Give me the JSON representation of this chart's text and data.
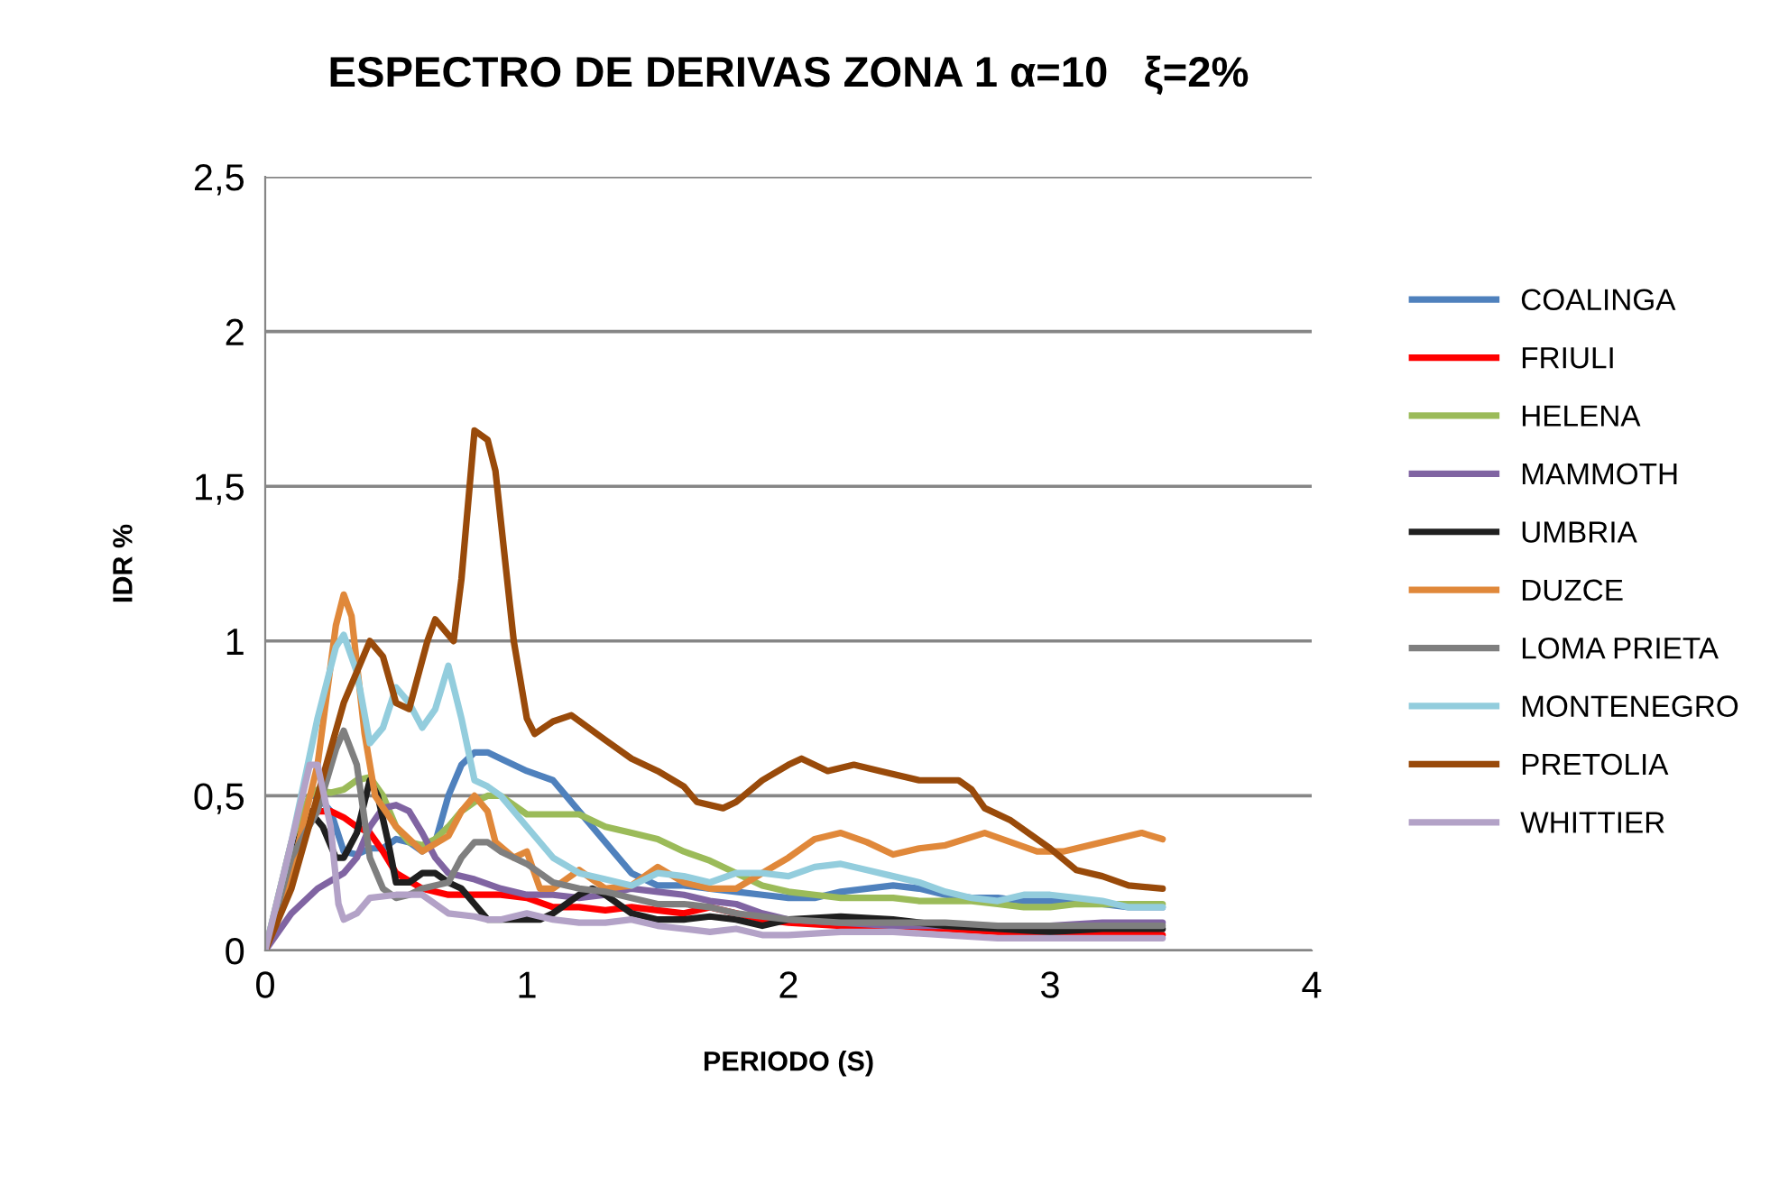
{
  "chart_data": {
    "type": "line",
    "title": "ESPECTRO DE DERIVAS ZONA 1 α=10   ξ=2%",
    "xlabel": "PERIODO (S)",
    "ylabel": "IDR %",
    "xlim": [
      0,
      4
    ],
    "xticks": [
      0,
      1,
      2,
      3,
      4
    ],
    "ylim": [
      0,
      2.5
    ],
    "yticks": [
      0,
      {
        "value": 0.5,
        "label": "0,5"
      },
      1,
      {
        "value": 1.5,
        "label": "1,5"
      },
      2,
      {
        "value": 2.5,
        "label": "2,5"
      }
    ],
    "grid": "y",
    "legend": "right",
    "marker": "none",
    "line_style": "solid",
    "series": [
      {
        "name": "COALINGA",
        "color": "#4f81bd",
        "x": [
          0,
          0.1,
          0.17,
          0.2,
          0.25,
          0.3,
          0.35,
          0.4,
          0.45,
          0.5,
          0.55,
          0.6,
          0.65,
          0.7,
          0.75,
          0.8,
          0.85,
          0.9,
          1.0,
          1.1,
          1.2,
          1.3,
          1.4,
          1.5,
          1.6,
          1.7,
          1.8,
          1.9,
          2.0,
          2.1,
          2.2,
          2.3,
          2.4,
          2.5,
          2.6,
          2.7,
          2.8,
          2.9,
          3.0,
          3.1,
          3.2,
          3.3,
          3.43
        ],
        "values": [
          0,
          0.3,
          0.5,
          0.5,
          0.45,
          0.32,
          0.31,
          0.33,
          0.33,
          0.36,
          0.35,
          0.32,
          0.35,
          0.5,
          0.6,
          0.64,
          0.64,
          0.62,
          0.58,
          0.55,
          0.45,
          0.35,
          0.25,
          0.21,
          0.21,
          0.2,
          0.19,
          0.18,
          0.17,
          0.17,
          0.19,
          0.2,
          0.21,
          0.2,
          0.18,
          0.17,
          0.17,
          0.16,
          0.16,
          0.16,
          0.15,
          0.14,
          0.14
        ]
      },
      {
        "name": "FRIULI",
        "color": "#ff0000",
        "x": [
          0,
          0.1,
          0.17,
          0.25,
          0.3,
          0.35,
          0.4,
          0.45,
          0.5,
          0.6,
          0.7,
          0.8,
          0.9,
          1.0,
          1.1,
          1.2,
          1.3,
          1.4,
          1.5,
          1.6,
          1.7,
          1.8,
          1.9,
          2.0,
          2.2,
          2.4,
          2.6,
          2.8,
          3.0,
          3.2,
          3.43
        ],
        "values": [
          0,
          0.3,
          0.45,
          0.45,
          0.43,
          0.4,
          0.38,
          0.32,
          0.25,
          0.2,
          0.18,
          0.18,
          0.18,
          0.17,
          0.14,
          0.14,
          0.13,
          0.14,
          0.13,
          0.12,
          0.14,
          0.12,
          0.1,
          0.09,
          0.08,
          0.08,
          0.07,
          0.06,
          0.06,
          0.06,
          0.05
        ]
      },
      {
        "name": "HELENA",
        "color": "#9bbb59",
        "x": [
          0,
          0.1,
          0.17,
          0.2,
          0.25,
          0.3,
          0.35,
          0.4,
          0.45,
          0.5,
          0.55,
          0.6,
          0.65,
          0.7,
          0.75,
          0.8,
          0.85,
          0.9,
          0.95,
          1.0,
          1.1,
          1.2,
          1.3,
          1.4,
          1.5,
          1.6,
          1.7,
          1.8,
          1.9,
          2.0,
          2.1,
          2.2,
          2.3,
          2.4,
          2.5,
          2.6,
          2.7,
          2.8,
          2.9,
          3.0,
          3.1,
          3.2,
          3.3,
          3.43
        ],
        "values": [
          0,
          0.35,
          0.5,
          0.52,
          0.51,
          0.52,
          0.55,
          0.56,
          0.5,
          0.4,
          0.35,
          0.34,
          0.36,
          0.4,
          0.45,
          0.48,
          0.5,
          0.5,
          0.47,
          0.44,
          0.44,
          0.44,
          0.4,
          0.38,
          0.36,
          0.32,
          0.29,
          0.25,
          0.21,
          0.19,
          0.18,
          0.17,
          0.17,
          0.17,
          0.16,
          0.16,
          0.16,
          0.15,
          0.14,
          0.14,
          0.15,
          0.15,
          0.15,
          0.15
        ]
      },
      {
        "name": "MAMMOTH",
        "color": "#8064a2",
        "x": [
          0,
          0.1,
          0.2,
          0.3,
          0.35,
          0.4,
          0.45,
          0.5,
          0.55,
          0.6,
          0.65,
          0.7,
          0.8,
          0.9,
          1.0,
          1.1,
          1.2,
          1.3,
          1.4,
          1.5,
          1.6,
          1.7,
          1.8,
          1.9,
          2.0,
          2.2,
          2.4,
          2.6,
          2.8,
          3.0,
          3.2,
          3.43
        ],
        "values": [
          0,
          0.12,
          0.2,
          0.25,
          0.3,
          0.4,
          0.46,
          0.47,
          0.45,
          0.38,
          0.3,
          0.25,
          0.23,
          0.2,
          0.18,
          0.18,
          0.17,
          0.18,
          0.2,
          0.19,
          0.18,
          0.16,
          0.15,
          0.12,
          0.1,
          0.09,
          0.08,
          0.08,
          0.08,
          0.08,
          0.09,
          0.09
        ]
      },
      {
        "name": "UMBRIA",
        "color": "#1f1f1f",
        "x": [
          0,
          0.1,
          0.17,
          0.22,
          0.27,
          0.3,
          0.35,
          0.4,
          0.43,
          0.47,
          0.5,
          0.55,
          0.6,
          0.65,
          0.7,
          0.75,
          0.8,
          0.85,
          0.95,
          1.05,
          1.1,
          1.2,
          1.25,
          1.3,
          1.4,
          1.5,
          1.6,
          1.7,
          1.8,
          1.9,
          2.0,
          2.2,
          2.4,
          2.6,
          2.8,
          3.0,
          3.2,
          3.43
        ],
        "values": [
          0,
          0.3,
          0.45,
          0.4,
          0.3,
          0.3,
          0.38,
          0.55,
          0.5,
          0.35,
          0.22,
          0.22,
          0.25,
          0.25,
          0.22,
          0.2,
          0.15,
          0.1,
          0.1,
          0.1,
          0.12,
          0.18,
          0.2,
          0.18,
          0.12,
          0.1,
          0.1,
          0.11,
          0.1,
          0.08,
          0.1,
          0.11,
          0.1,
          0.08,
          0.07,
          0.06,
          0.07,
          0.07
        ]
      },
      {
        "name": "DUZCE",
        "color": "#e0883a",
        "x": [
          0,
          0.1,
          0.2,
          0.27,
          0.3,
          0.33,
          0.38,
          0.42,
          0.5,
          0.6,
          0.7,
          0.75,
          0.8,
          0.85,
          0.88,
          0.95,
          1.0,
          1.05,
          1.1,
          1.2,
          1.3,
          1.4,
          1.5,
          1.6,
          1.7,
          1.8,
          1.9,
          2.0,
          2.1,
          2.2,
          2.3,
          2.4,
          2.5,
          2.6,
          2.75,
          2.85,
          2.95,
          3.05,
          3.2,
          3.35,
          3.43
        ],
        "values": [
          0,
          0.25,
          0.6,
          1.05,
          1.15,
          1.08,
          0.7,
          0.5,
          0.4,
          0.32,
          0.37,
          0.45,
          0.5,
          0.45,
          0.35,
          0.3,
          0.32,
          0.2,
          0.2,
          0.26,
          0.2,
          0.21,
          0.27,
          0.22,
          0.2,
          0.2,
          0.25,
          0.3,
          0.36,
          0.38,
          0.35,
          0.31,
          0.33,
          0.34,
          0.38,
          0.35,
          0.32,
          0.32,
          0.35,
          0.38,
          0.36
        ]
      },
      {
        "name": "LOMA PRIETA",
        "color": "#7f7f7f",
        "x": [
          0,
          0.1,
          0.2,
          0.27,
          0.3,
          0.35,
          0.4,
          0.45,
          0.5,
          0.55,
          0.6,
          0.7,
          0.75,
          0.8,
          0.85,
          0.9,
          1.0,
          1.1,
          1.2,
          1.3,
          1.4,
          1.5,
          1.6,
          1.7,
          1.8,
          2.0,
          2.2,
          2.4,
          2.6,
          2.8,
          3.0,
          3.2,
          3.43
        ],
        "values": [
          0,
          0.3,
          0.45,
          0.65,
          0.71,
          0.6,
          0.3,
          0.2,
          0.17,
          0.18,
          0.2,
          0.22,
          0.3,
          0.35,
          0.35,
          0.32,
          0.28,
          0.22,
          0.2,
          0.19,
          0.17,
          0.15,
          0.15,
          0.14,
          0.12,
          0.1,
          0.09,
          0.09,
          0.09,
          0.08,
          0.08,
          0.08,
          0.08
        ]
      },
      {
        "name": "MONTENEGRO",
        "color": "#93cddd",
        "x": [
          0,
          0.1,
          0.2,
          0.27,
          0.3,
          0.35,
          0.4,
          0.45,
          0.5,
          0.55,
          0.6,
          0.65,
          0.7,
          0.75,
          0.8,
          0.85,
          0.9,
          1.0,
          1.1,
          1.2,
          1.3,
          1.4,
          1.5,
          1.6,
          1.7,
          1.8,
          1.9,
          2.0,
          2.1,
          2.2,
          2.3,
          2.4,
          2.5,
          2.6,
          2.7,
          2.8,
          2.9,
          3.0,
          3.1,
          3.2,
          3.3,
          3.43
        ],
        "values": [
          0,
          0.35,
          0.75,
          0.98,
          1.02,
          0.9,
          0.67,
          0.72,
          0.85,
          0.8,
          0.72,
          0.78,
          0.92,
          0.75,
          0.55,
          0.53,
          0.5,
          0.4,
          0.3,
          0.25,
          0.23,
          0.21,
          0.25,
          0.24,
          0.22,
          0.25,
          0.25,
          0.24,
          0.27,
          0.28,
          0.26,
          0.24,
          0.22,
          0.19,
          0.17,
          0.16,
          0.18,
          0.18,
          0.17,
          0.16,
          0.14,
          0.14
        ]
      },
      {
        "name": "PRETOLIA",
        "color": "#994a0a",
        "x": [
          0,
          0.1,
          0.2,
          0.3,
          0.4,
          0.45,
          0.5,
          0.55,
          0.62,
          0.65,
          0.72,
          0.75,
          0.8,
          0.85,
          0.88,
          0.95,
          1.0,
          1.03,
          1.1,
          1.17,
          1.3,
          1.4,
          1.5,
          1.6,
          1.65,
          1.75,
          1.8,
          1.9,
          2.0,
          2.05,
          2.15,
          2.25,
          2.35,
          2.5,
          2.65,
          2.7,
          2.75,
          2.85,
          3.0,
          3.1,
          3.2,
          3.3,
          3.43
        ],
        "values": [
          0,
          0.2,
          0.5,
          0.8,
          1.0,
          0.95,
          0.8,
          0.78,
          1.0,
          1.07,
          1.0,
          1.2,
          1.68,
          1.65,
          1.55,
          1.0,
          0.75,
          0.7,
          0.74,
          0.76,
          0.68,
          0.62,
          0.58,
          0.53,
          0.48,
          0.46,
          0.48,
          0.55,
          0.6,
          0.62,
          0.58,
          0.6,
          0.58,
          0.55,
          0.55,
          0.52,
          0.46,
          0.42,
          0.33,
          0.26,
          0.24,
          0.21,
          0.2
        ]
      },
      {
        "name": "WHITTIER",
        "color": "#b3a2c7",
        "x": [
          0,
          0.1,
          0.17,
          0.2,
          0.25,
          0.28,
          0.3,
          0.35,
          0.4,
          0.5,
          0.6,
          0.65,
          0.7,
          0.8,
          0.85,
          0.9,
          1.0,
          1.1,
          1.2,
          1.3,
          1.4,
          1.5,
          1.6,
          1.7,
          1.8,
          1.9,
          2.0,
          2.2,
          2.4,
          2.6,
          2.8,
          3.0,
          3.2,
          3.43
        ],
        "values": [
          0,
          0.35,
          0.6,
          0.6,
          0.4,
          0.15,
          0.1,
          0.12,
          0.17,
          0.18,
          0.18,
          0.15,
          0.12,
          0.11,
          0.1,
          0.1,
          0.12,
          0.1,
          0.09,
          0.09,
          0.1,
          0.08,
          0.07,
          0.06,
          0.07,
          0.05,
          0.05,
          0.06,
          0.06,
          0.05,
          0.04,
          0.04,
          0.04,
          0.04
        ]
      }
    ]
  }
}
